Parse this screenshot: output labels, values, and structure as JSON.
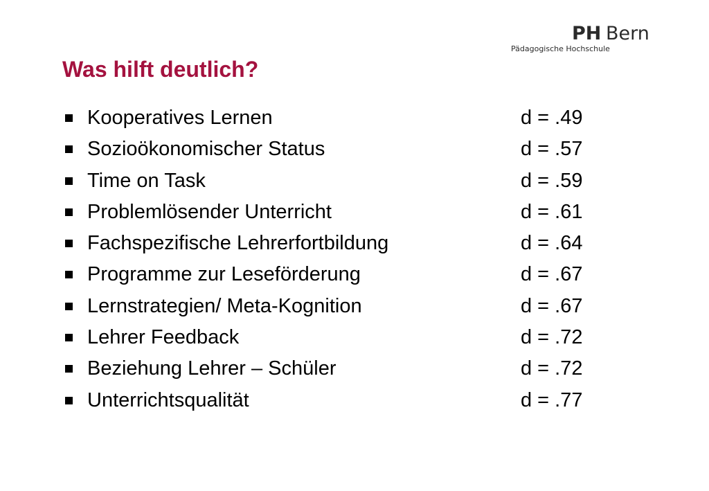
{
  "logo": {
    "ph": "PH",
    "bern": "Bern",
    "subtitle": "Pädagogische Hochschule"
  },
  "title": "Was hilft deutlich?",
  "items": [
    {
      "label": "Kooperatives Lernen",
      "value": "d = .49"
    },
    {
      "label": "Sozioökonomischer Status",
      "value": "d = .57"
    },
    {
      "label": "Time on Task",
      "value": "d = .59"
    },
    {
      "label": "Problemlösender Unterricht",
      "value": "d = .61"
    },
    {
      "label": "Fachspezifische Lehrerfortbildung",
      "value": "d = .64"
    },
    {
      "label": "Programme zur Leseförderung",
      "value": "d = .67"
    },
    {
      "label": "Lernstrategien/ Meta-Kognition",
      "value": "d = .67"
    },
    {
      "label": "Lehrer Feedback",
      "value": "d = .72"
    },
    {
      "label": "Beziehung Lehrer – Schüler",
      "value": "d = .72"
    },
    {
      "label": "Unterrichtsqualität",
      "value": "d = .77"
    }
  ],
  "colors": {
    "title": "#a4123f",
    "text": "#000000",
    "logo": "#2b2b2b"
  }
}
